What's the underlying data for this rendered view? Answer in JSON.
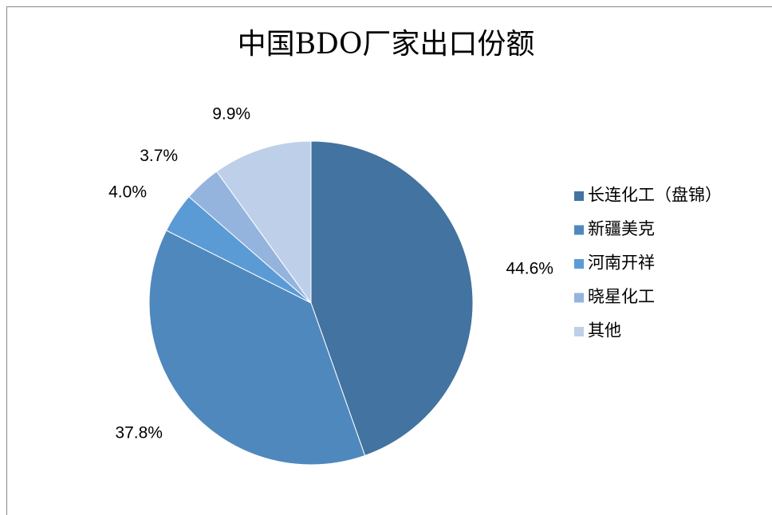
{
  "chart_data": {
    "type": "pie",
    "title": "中国BDO厂家出口份额",
    "categories": [
      "长连化工（盘锦）",
      "新疆美克",
      "河南开祥",
      "晓星化工",
      "其他"
    ],
    "values": [
      44.6,
      37.8,
      4.0,
      3.7,
      9.9
    ],
    "value_labels": [
      "44.6%",
      "37.8%",
      "4.0%",
      "3.7%",
      "9.9%"
    ],
    "colors": [
      "#4373a0",
      "#4f88bd",
      "#5b9bd5",
      "#95b4dd",
      "#bed0e9"
    ],
    "legend": "right"
  }
}
